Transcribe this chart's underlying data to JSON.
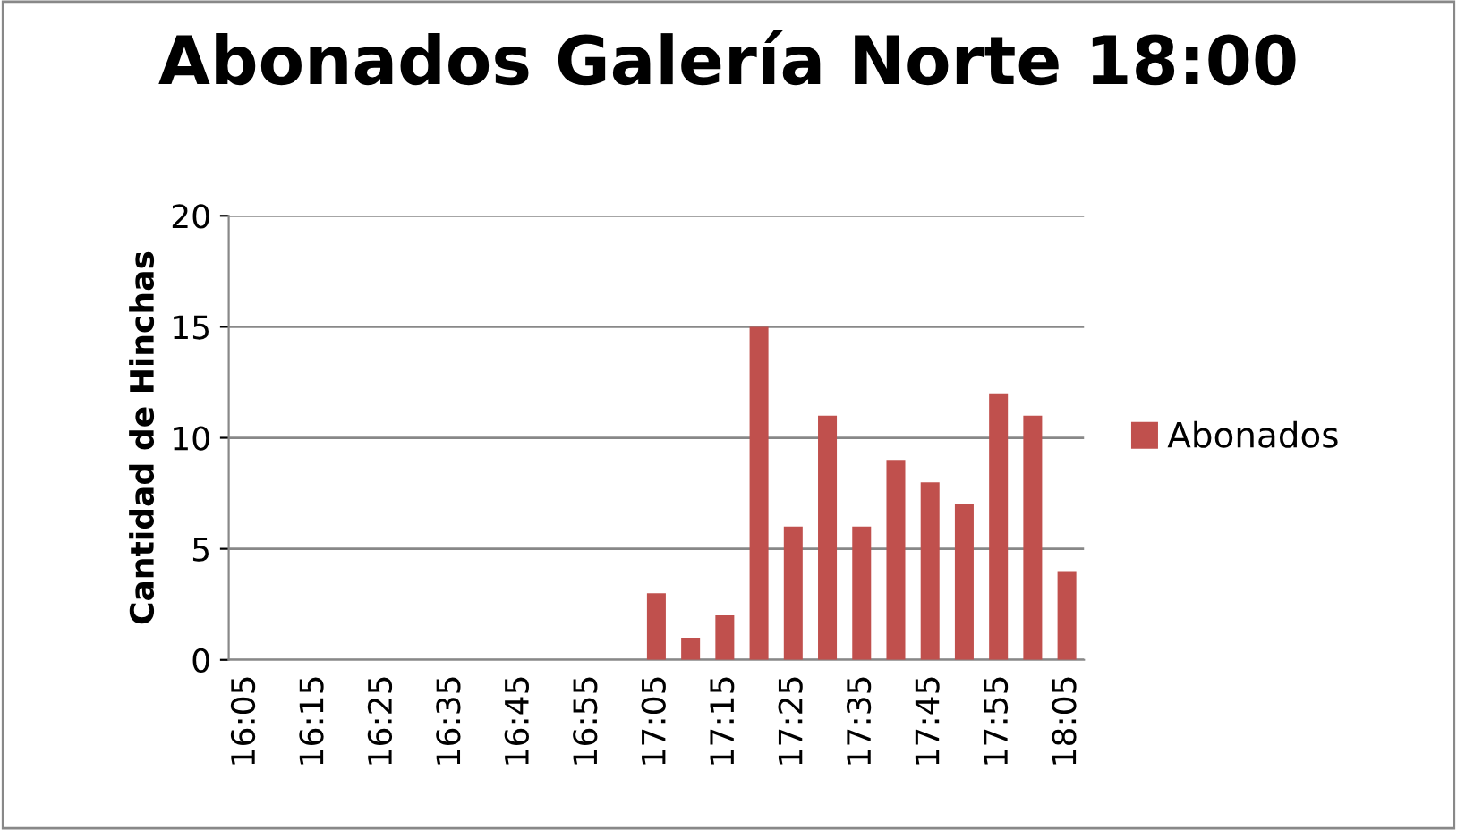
{
  "chart_data": {
    "type": "bar",
    "title": "Abonados Galería Norte 18:00",
    "ylabel": "Cantidad de Hinchas",
    "categories": [
      "16:05",
      null,
      "16:15",
      null,
      "16:25",
      null,
      "16:35",
      null,
      "16:45",
      null,
      "16:55",
      null,
      "17:05",
      null,
      "17:15",
      null,
      "17:25",
      null,
      "17:35",
      null,
      "17:45",
      null,
      "17:55",
      null,
      "18:05"
    ],
    "series": [
      {
        "name": "Abonados",
        "color": "#c0504d",
        "values": [
          0,
          0,
          0,
          0,
          0,
          0,
          0,
          0,
          0,
          0,
          0,
          0,
          3,
          1,
          2,
          15,
          6,
          11,
          6,
          9,
          8,
          7,
          12,
          11,
          4
        ]
      }
    ],
    "ylim": [
      0,
      20
    ],
    "yticks": [
      0,
      5,
      10,
      15,
      20
    ],
    "grid": "y",
    "legend": "right"
  }
}
